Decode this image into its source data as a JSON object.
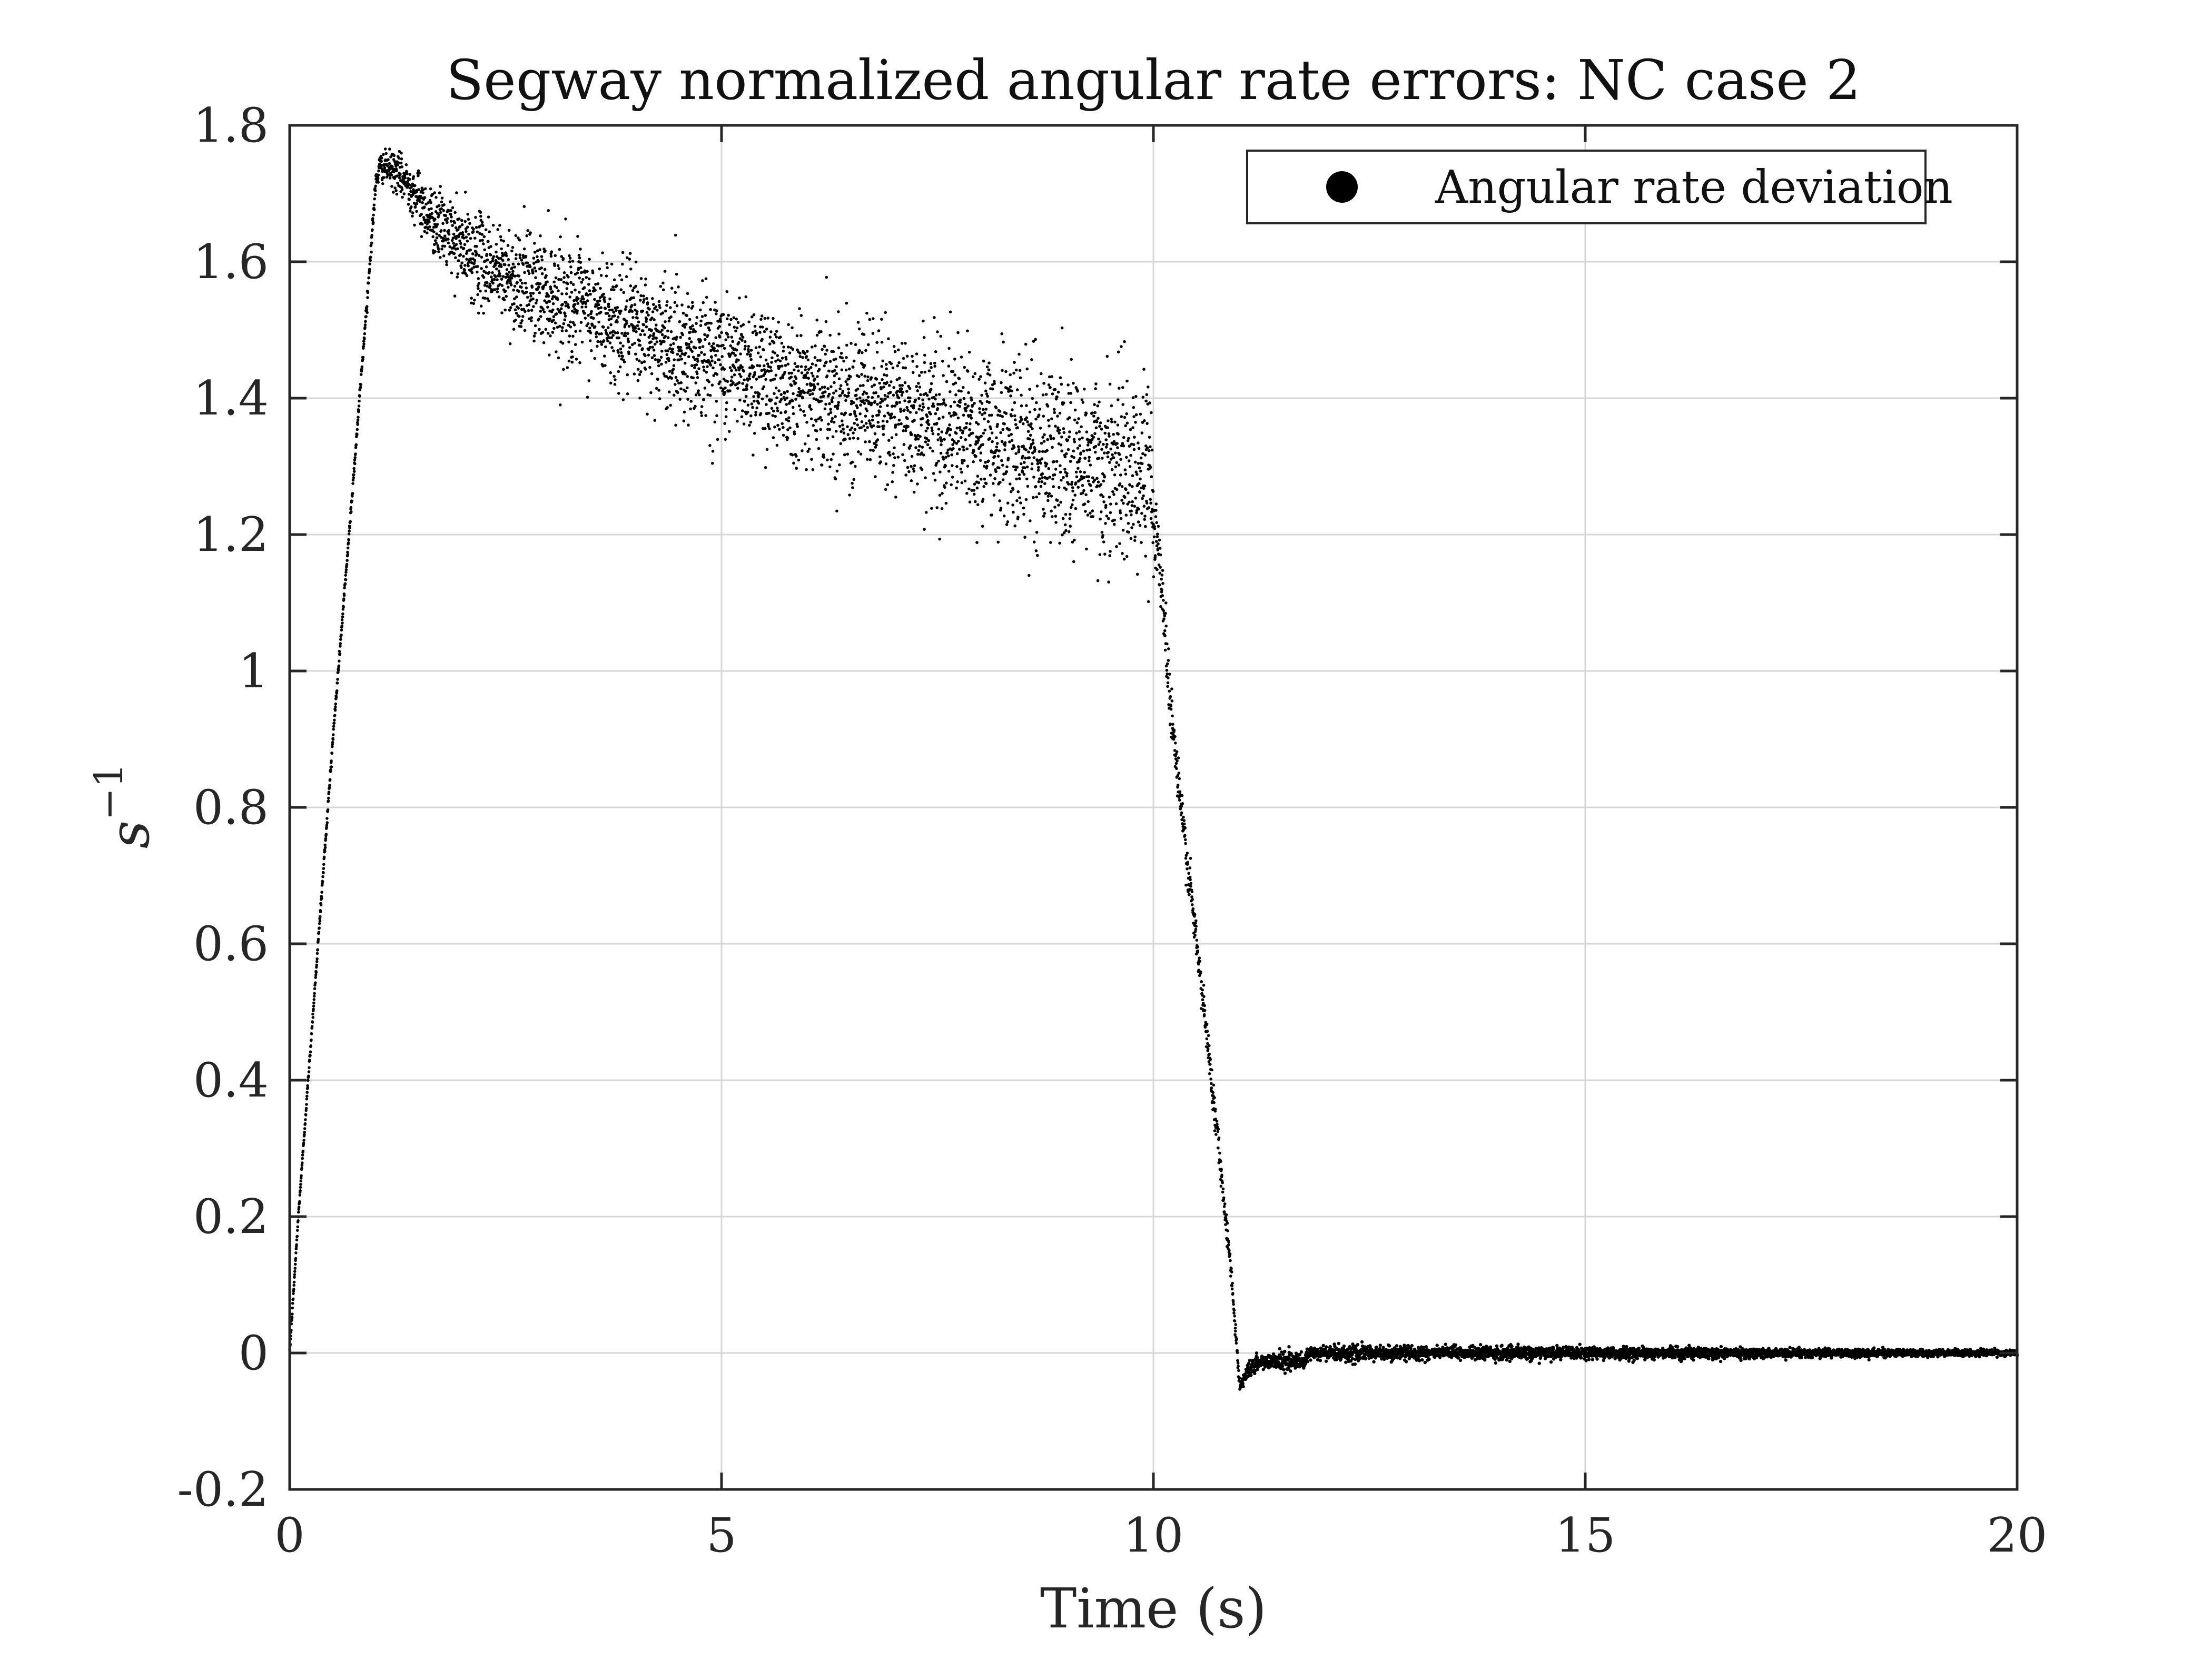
{
  "chart_data": {
    "type": "scatter",
    "title": "Segway normalized angular rate errors: NC case 2",
    "xlabel": "Time (s)",
    "ylabel": "s",
    "ylabel_superscript": "−1",
    "xlim": [
      0,
      20
    ],
    "ylim": [
      -0.2,
      1.8
    ],
    "xticks": [
      0,
      5,
      10,
      15,
      20
    ],
    "xtick_labels": [
      "0",
      "5",
      "10",
      "15",
      "20"
    ],
    "yticks": [
      -0.2,
      0,
      0.2,
      0.4,
      0.6,
      0.8,
      1,
      1.2,
      1.4,
      1.6,
      1.8
    ],
    "ytick_labels": [
      "-0.2",
      "0",
      "0.2",
      "0.4",
      "0.6",
      "0.8",
      "1",
      "1.2",
      "1.4",
      "1.6",
      "1.8"
    ],
    "grid": true,
    "legend_position": "top-right",
    "marker_color": "#000000",
    "series": [
      {
        "name": "Angular rate deviation",
        "trend": {
          "x": [
            0,
            0.1,
            0.3,
            0.5,
            0.7,
            0.9,
            1.0,
            1.05,
            1.2,
            1.4,
            1.6,
            2.0,
            2.5,
            3.0,
            3.5,
            4.0,
            4.5,
            5.0,
            5.5,
            6.0,
            6.5,
            7.0,
            7.5,
            8.0,
            8.5,
            9.0,
            9.5,
            9.95,
            10.0,
            10.1,
            10.2,
            10.3,
            10.5,
            10.7,
            10.9,
            11.0,
            11.05,
            11.1,
            11.2,
            11.4,
            11.6,
            11.75,
            11.8,
            12.0,
            13.0,
            14.0,
            15.0,
            16.0,
            17.0,
            18.0,
            19.0,
            20.0
          ],
          "y": [
            0,
            0.2,
            0.55,
            0.9,
            1.22,
            1.55,
            1.72,
            1.74,
            1.735,
            1.71,
            1.67,
            1.62,
            1.58,
            1.555,
            1.525,
            1.5,
            1.475,
            1.455,
            1.435,
            1.415,
            1.4,
            1.385,
            1.365,
            1.345,
            1.33,
            1.315,
            1.3,
            1.29,
            1.25,
            1.12,
            0.95,
            0.82,
            0.6,
            0.37,
            0.12,
            -0.05,
            -0.035,
            -0.025,
            -0.015,
            -0.01,
            -0.012,
            -0.015,
            -0.002,
            0,
            0,
            0,
            0,
            0,
            0,
            0,
            0,
            0
          ]
        },
        "scatter_spread": {
          "x": [
            0,
            0.95,
            1.05,
            1.5,
            2.0,
            3.0,
            4.0,
            5.0,
            6.0,
            7.0,
            8.0,
            9.0,
            9.95,
            10.05,
            11.0,
            20.0
          ],
          "y": [
            0.002,
            0.005,
            0.01,
            0.02,
            0.03,
            0.04,
            0.045,
            0.05,
            0.052,
            0.055,
            0.06,
            0.065,
            0.065,
            0.025,
            0.006,
            0.002
          ]
        }
      }
    ]
  }
}
